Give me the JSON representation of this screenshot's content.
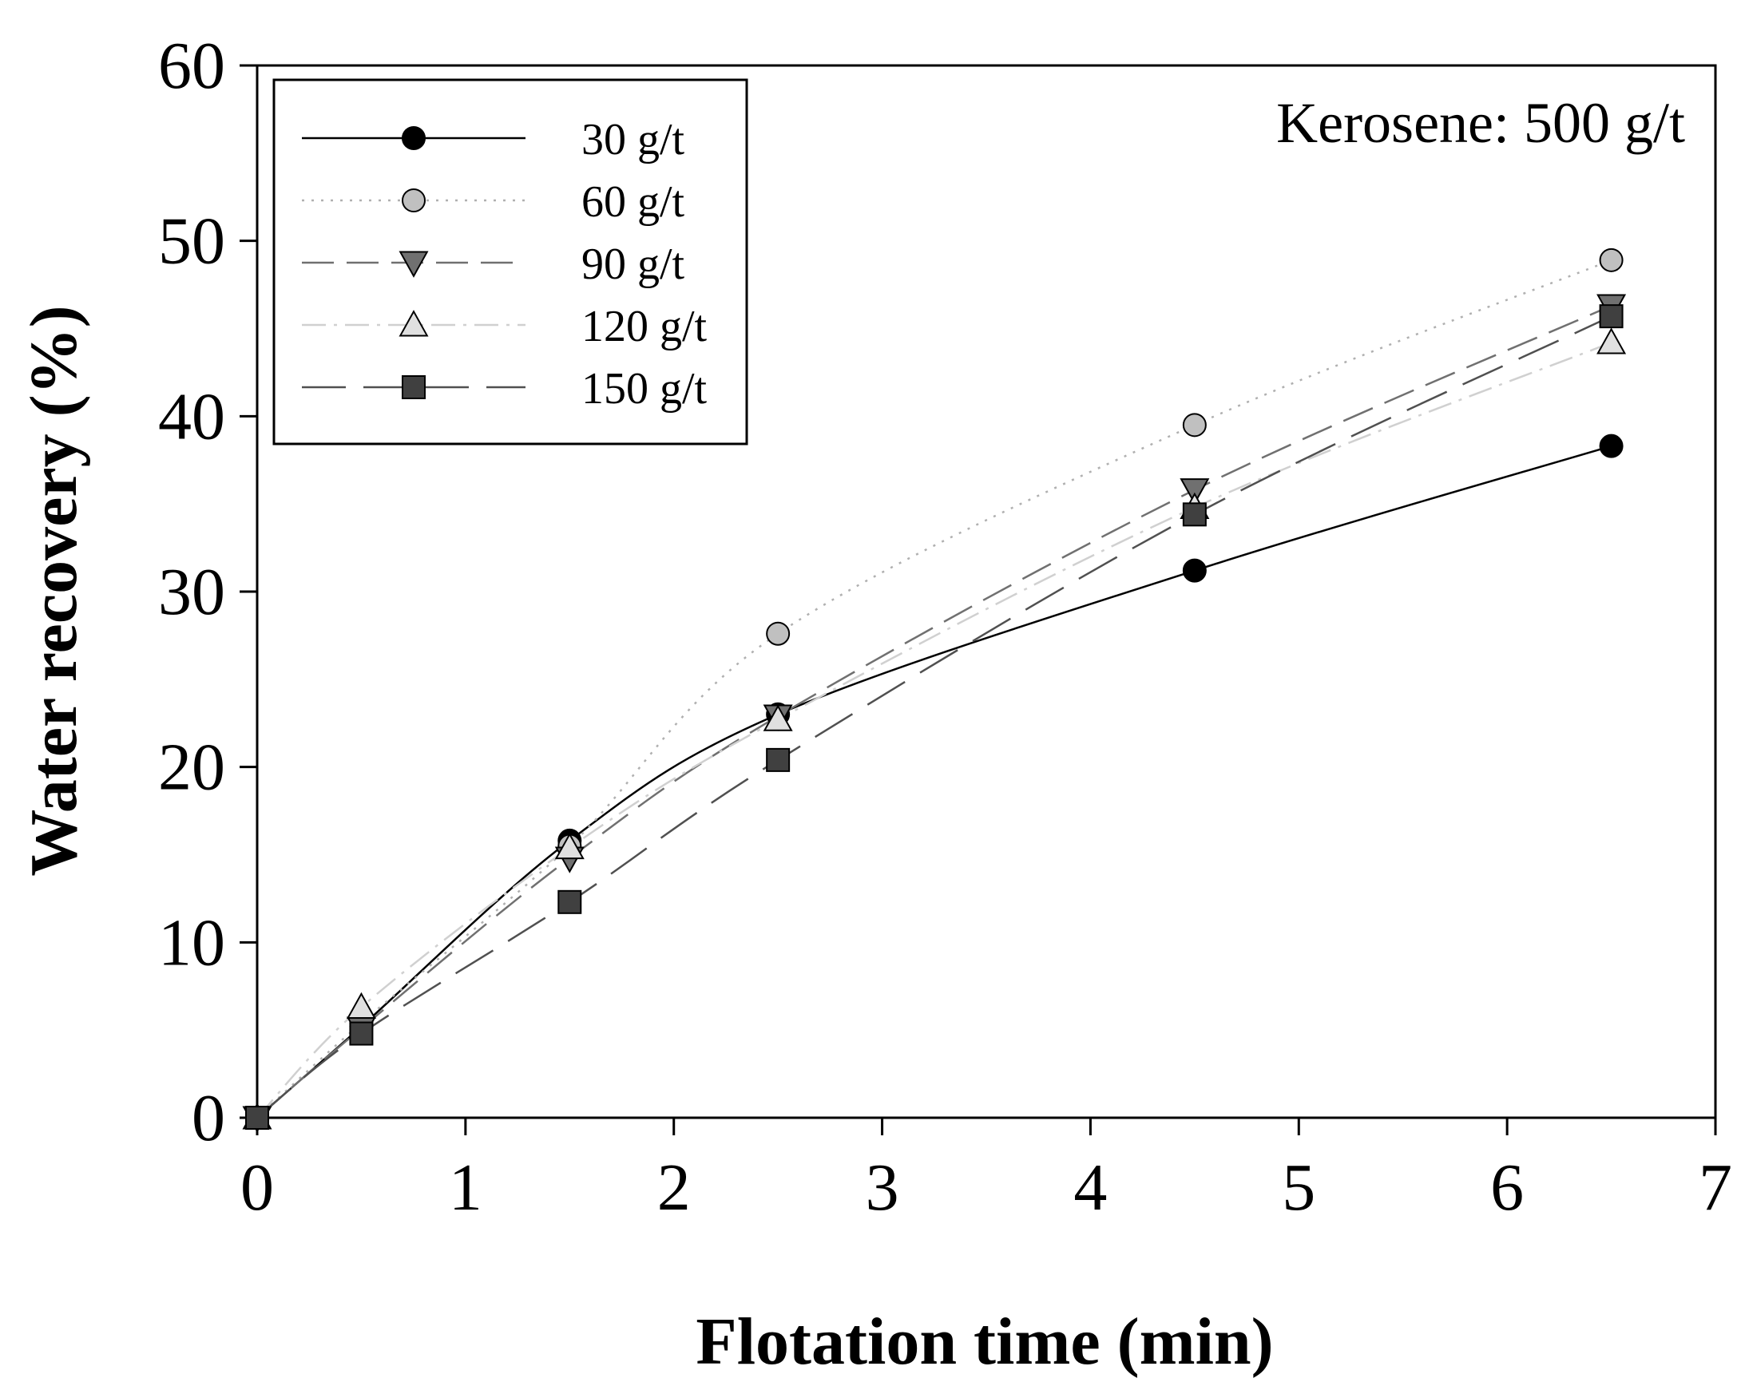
{
  "chart_data": {
    "type": "line",
    "xlabel": "Flotation time (min)",
    "ylabel": "Water recovery (%)",
    "xlim": [
      0,
      7
    ],
    "ylim": [
      0,
      60
    ],
    "xticks": [
      "0",
      "1",
      "2",
      "3",
      "4",
      "5",
      "6",
      "7"
    ],
    "yticks": [
      "0",
      "10",
      "20",
      "30",
      "40",
      "50",
      "60"
    ],
    "grid": false,
    "legend_position": "top-left",
    "annotation": "Kerosene: 500 g/t",
    "x": [
      0,
      0.5,
      1.5,
      2.5,
      4.5,
      6.5
    ],
    "series": [
      {
        "name": "30 g/t",
        "values": [
          0,
          5.2,
          15.8,
          23.0,
          31.2,
          38.3
        ],
        "marker": "circle",
        "marker_fill": "#000000",
        "line_color": "#000000",
        "dash": "solid"
      },
      {
        "name": "60 g/t",
        "values": [
          0,
          5.4,
          15.5,
          27.6,
          39.5,
          48.9
        ],
        "marker": "circle",
        "marker_fill": "#c0c0c0",
        "line_color": "#b0b0b0",
        "dash": "dotted"
      },
      {
        "name": "90 g/t",
        "values": [
          0,
          5.1,
          14.8,
          22.9,
          35.8,
          46.3
        ],
        "marker": "triangle-down",
        "marker_fill": "#707070",
        "line_color": "#707070",
        "dash": "dashed"
      },
      {
        "name": "120 g/t",
        "values": [
          0,
          6.3,
          15.4,
          22.7,
          34.8,
          44.2
        ],
        "marker": "triangle-up",
        "marker_fill": "#e0e0e0",
        "line_color": "#d0d0d0",
        "dash": "dash-dot"
      },
      {
        "name": "150 g/t",
        "values": [
          0,
          4.8,
          12.3,
          20.4,
          34.4,
          45.7
        ],
        "marker": "square",
        "marker_fill": "#404040",
        "line_color": "#505050",
        "dash": "long-dash"
      }
    ]
  }
}
